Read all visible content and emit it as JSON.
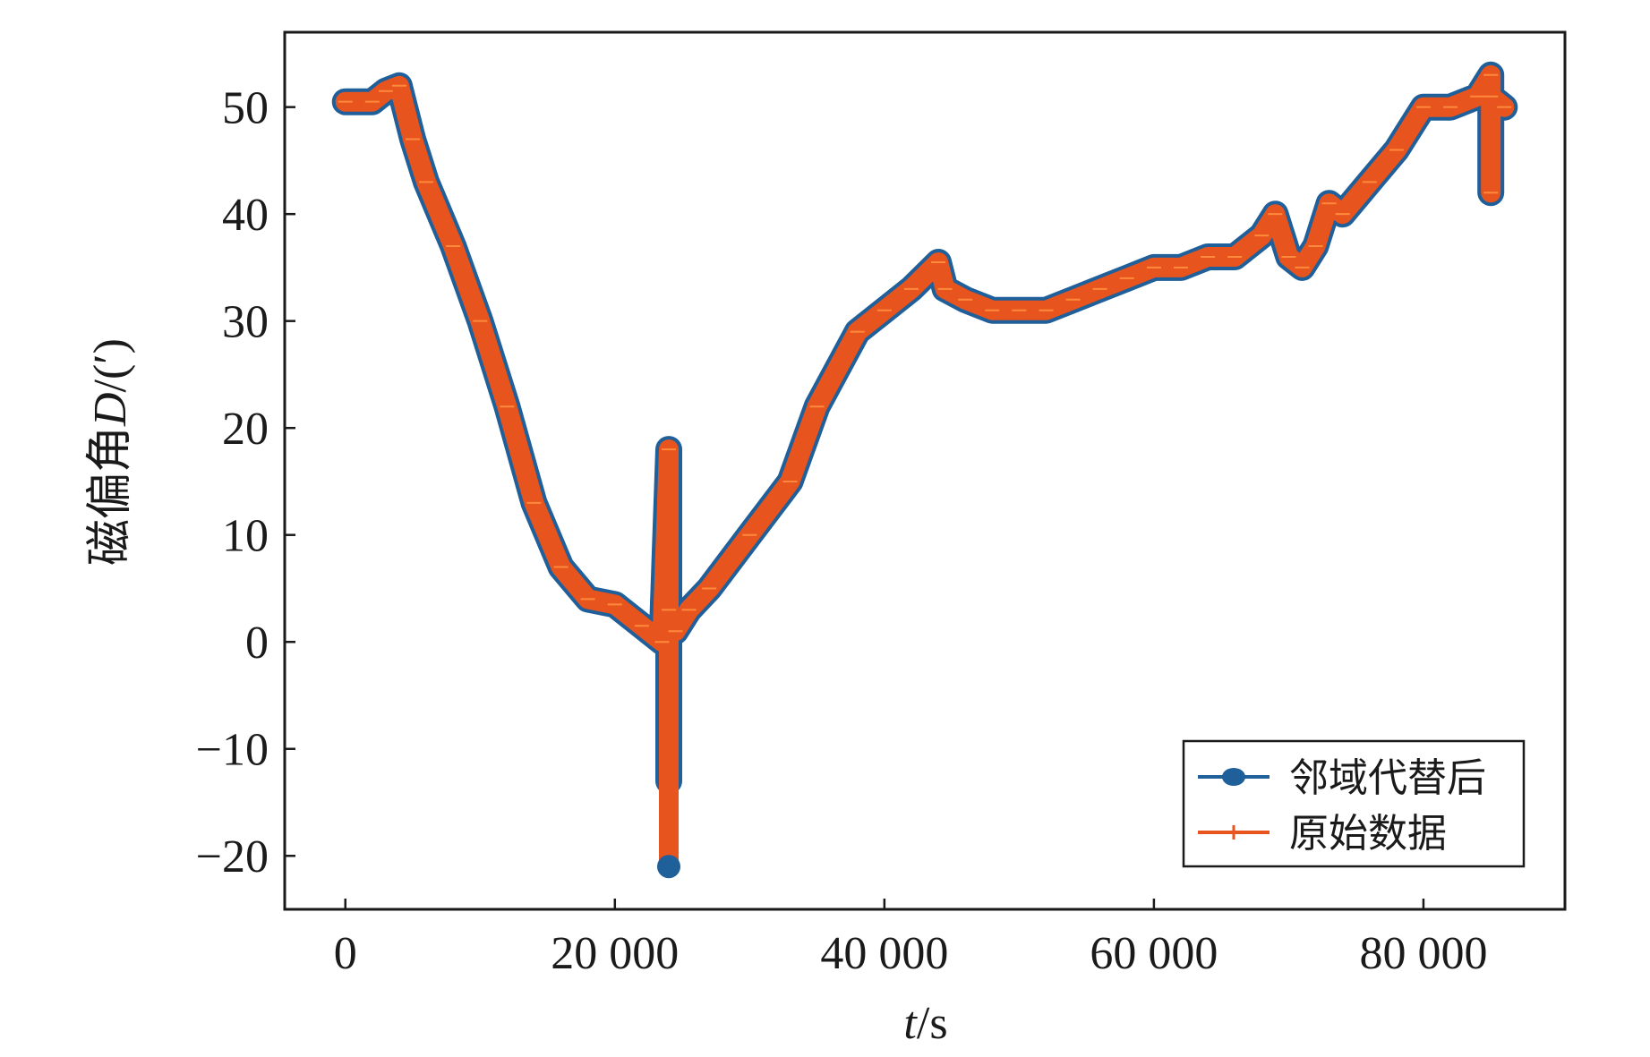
{
  "chart_data": {
    "type": "line",
    "title": "",
    "xlabel": "t/s",
    "xlabel_italic": "t",
    "xlabel_unit": "/s",
    "ylabel": "磁偏角D/(′)",
    "ylabel_prefix": "磁偏角",
    "ylabel_italic": "D",
    "ylabel_unit": "/(′)",
    "xlim": [
      -4500,
      90500
    ],
    "ylim": [
      -25,
      57
    ],
    "x_ticks": [
      0,
      20000,
      40000,
      60000,
      80000
    ],
    "x_tick_labels": [
      "0",
      "20 000",
      "40 000",
      "60 000",
      "80 000"
    ],
    "y_ticks": [
      -20,
      -10,
      0,
      10,
      20,
      30,
      40,
      50
    ],
    "y_tick_labels": [
      "−20",
      "−10",
      "0",
      "10",
      "20",
      "30",
      "40",
      "50"
    ],
    "grid": false,
    "legend_position": "bottom-right",
    "colors": {
      "replaced": "#1f5f9a",
      "original": "#e8541e"
    },
    "series": [
      {
        "name": "邻域代替后",
        "marker": "circle",
        "color": "#1f5f9a",
        "x": [
          0,
          2000,
          3000,
          4000,
          5000,
          6000,
          8000,
          10000,
          12000,
          14000,
          16000,
          18000,
          20000,
          22000,
          23500,
          24000,
          24000,
          24000,
          24500,
          25500,
          27000,
          30000,
          33000,
          35000,
          38000,
          40000,
          42000,
          44000,
          44500,
          46000,
          48000,
          50000,
          52000,
          54000,
          56000,
          58000,
          60000,
          62000,
          64000,
          66000,
          68000,
          69000,
          70000,
          71000,
          72000,
          73000,
          74000,
          76000,
          78000,
          80000,
          82000,
          84000,
          85000,
          85000,
          85000,
          86000
        ],
        "y": [
          50.5,
          50.5,
          51.5,
          52,
          47,
          43,
          37,
          30,
          22,
          13,
          7,
          4,
          3.5,
          1.5,
          0,
          18,
          -13,
          3,
          1,
          3,
          5,
          10,
          15,
          22,
          29,
          31,
          33,
          35.5,
          33,
          32,
          31,
          31,
          31,
          32,
          33,
          34,
          35,
          35,
          36,
          36,
          38,
          40,
          36,
          35,
          37,
          41,
          40,
          43,
          46,
          50,
          50,
          51,
          53,
          42,
          51,
          50
        ]
      },
      {
        "name": "原始数据",
        "marker": "plus",
        "color": "#e8541e",
        "x": [
          0,
          2000,
          3000,
          4000,
          5000,
          6000,
          8000,
          10000,
          12000,
          14000,
          16000,
          18000,
          20000,
          22000,
          23500,
          24000,
          24000,
          24000,
          24500,
          25500,
          27000,
          30000,
          33000,
          35000,
          38000,
          40000,
          42000,
          44000,
          44500,
          46000,
          48000,
          50000,
          52000,
          54000,
          56000,
          58000,
          60000,
          62000,
          64000,
          66000,
          68000,
          69000,
          70000,
          71000,
          72000,
          73000,
          74000,
          76000,
          78000,
          80000,
          82000,
          84000,
          85000,
          85000,
          85000,
          86000
        ],
        "y": [
          50.5,
          50.5,
          51.5,
          52,
          47,
          43,
          37,
          30,
          22,
          13,
          7,
          4,
          3.5,
          1.5,
          0,
          18,
          -21,
          3,
          1,
          3,
          5,
          10,
          15,
          22,
          29,
          31,
          33,
          35.5,
          33,
          32,
          31,
          31,
          31,
          32,
          33,
          34,
          35,
          35,
          36,
          36,
          38,
          40,
          36,
          35,
          37,
          41,
          40,
          43,
          46,
          50,
          50,
          51,
          53,
          42,
          51,
          50
        ]
      }
    ]
  }
}
